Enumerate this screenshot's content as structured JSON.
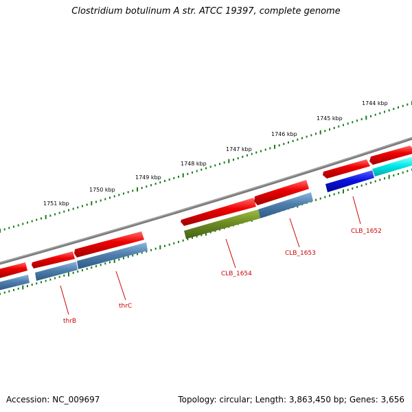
{
  "title": "Clostridium botulinum A str. ATCC 19397, complete genome",
  "accession_text": "Accession: NC_009697",
  "summary_text": "Topology: circular; Length: 3,863,450 bp; Genes: 3,656",
  "colors": {
    "backbone": "#808080",
    "forward_gene": "#ee0000",
    "reverse_gene": "#4f7fad",
    "highlight_olive": "#6e8c22",
    "highlight_blue": "#0a12e0",
    "highlight_cyan": "#00eaea",
    "tick": "#1a7a1a",
    "label_line": "#cc0000"
  },
  "scale_labels": [
    "1744 kbp",
    "1745 kbp",
    "1746 kbp",
    "1747 kbp",
    "1748 kbp",
    "1749 kbp",
    "1750 kbp",
    "1751 kbp"
  ],
  "gene_labels": [
    "CLB_1652",
    "CLB_1653",
    "CLB_1654",
    "thrC",
    "thrB"
  ]
}
